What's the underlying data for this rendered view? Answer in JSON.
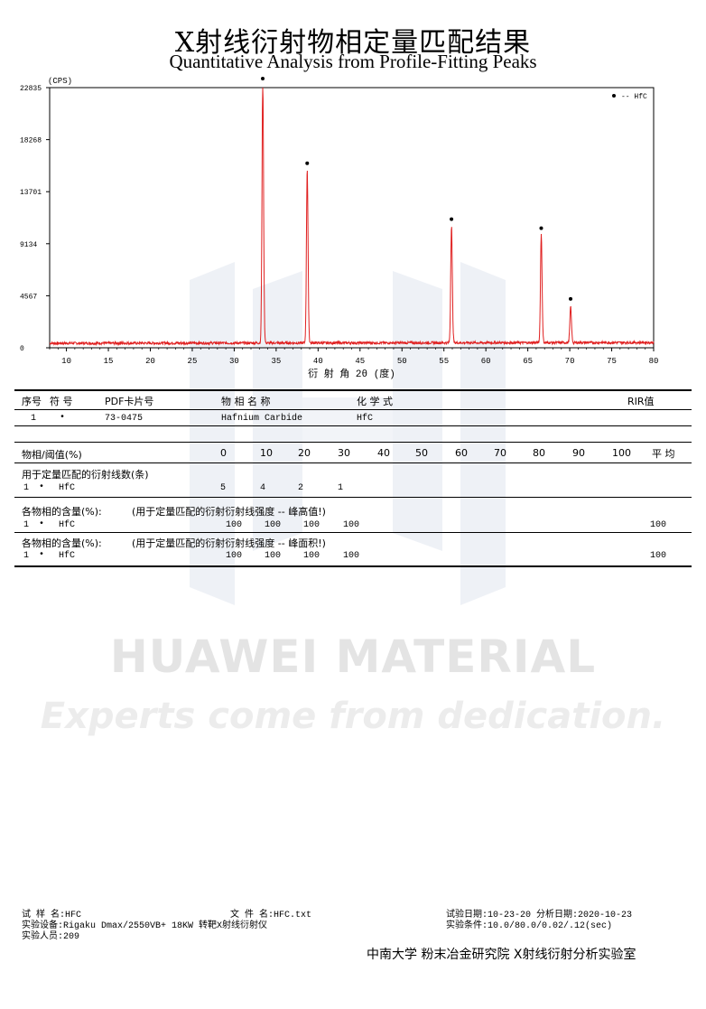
{
  "title_cn": "X射线衍射物相定量匹配结果",
  "title_en": "Quantitative Analysis from Profile-Fitting Peaks",
  "chart_data": {
    "type": "line",
    "ylabel": "(CPS)",
    "xlabel": "衍 射 角 2θ (度)",
    "xlim": [
      8,
      80
    ],
    "ylim": [
      0,
      22835
    ],
    "x_ticks": [
      10,
      15,
      20,
      25,
      30,
      35,
      40,
      45,
      50,
      55,
      60,
      65,
      70,
      75,
      80
    ],
    "y_ticks": [
      0,
      4567,
      9134,
      13701,
      18268,
      22835
    ],
    "legend": {
      "marker": "•",
      "label": "-- HfC",
      "position": "top-right"
    },
    "color": "#e02020",
    "baseline": 400,
    "peaks": [
      {
        "x": 33.4,
        "y": 22835
      },
      {
        "x": 38.7,
        "y": 15400
      },
      {
        "x": 55.9,
        "y": 10500
      },
      {
        "x": 66.6,
        "y": 9700
      },
      {
        "x": 70.1,
        "y": 3500
      }
    ]
  },
  "table": {
    "headers": {
      "seq": "序号",
      "sym": "符 号",
      "pdf": "PDF卡片号",
      "name": "物 相 名 称",
      "formula": "化  学  式",
      "rir": "RIR值"
    },
    "row": {
      "seq": "1",
      "sym": "•",
      "pdf": "73-0475",
      "name": "Hafnium Carbide",
      "formula": "HfC"
    }
  },
  "threshold": {
    "label": "物相/阈值(%)",
    "cols": [
      "0",
      "10",
      "20",
      "30",
      "40",
      "50",
      "60",
      "70",
      "80",
      "90",
      "100"
    ],
    "avg": "平 均"
  },
  "lines_section": {
    "title": "用于定量匹配的衍射线数(条)",
    "row": {
      "seq": "1",
      "sym": "•",
      "phase": "HfC",
      "vals": [
        "5",
        "4",
        "2",
        "1"
      ]
    }
  },
  "content_height": {
    "label": "各物相的含量(%):",
    "note": "(用于定量匹配的衍射衍射线强度 -- 峰高值!)",
    "row": {
      "seq": "1",
      "sym": "•",
      "phase": "HfC",
      "vals": [
        "100",
        "100",
        "100",
        "100"
      ],
      "avg": "100"
    }
  },
  "content_area": {
    "label": "各物相的含量(%):",
    "note": "(用于定量匹配的衍射衍射线强度 -- 峰面积!)",
    "row": {
      "seq": "1",
      "sym": "•",
      "phase": "HfC",
      "vals": [
        "100",
        "100",
        "100",
        "100"
      ],
      "avg": "100"
    }
  },
  "watermark": {
    "brand": "HUAWEI MATERIAL",
    "slogan": "Experts come from dedication."
  },
  "footer": {
    "sample": "试 样 名:HFC",
    "file": "文 件 名:HFC.txt",
    "test_date": "试验日期:10-23-20  分析日期:2020-10-23",
    "equipment": "实验设备:Rigaku Dmax/2550VB+ 18KW 转靶X射线衍射仪",
    "conditions": "实验条件:10.0/80.0/0.02/.12(sec)",
    "operator": "实验人员:209",
    "lab": "中南大学 粉末冶金研究院 X射线衍射分析实验室"
  }
}
